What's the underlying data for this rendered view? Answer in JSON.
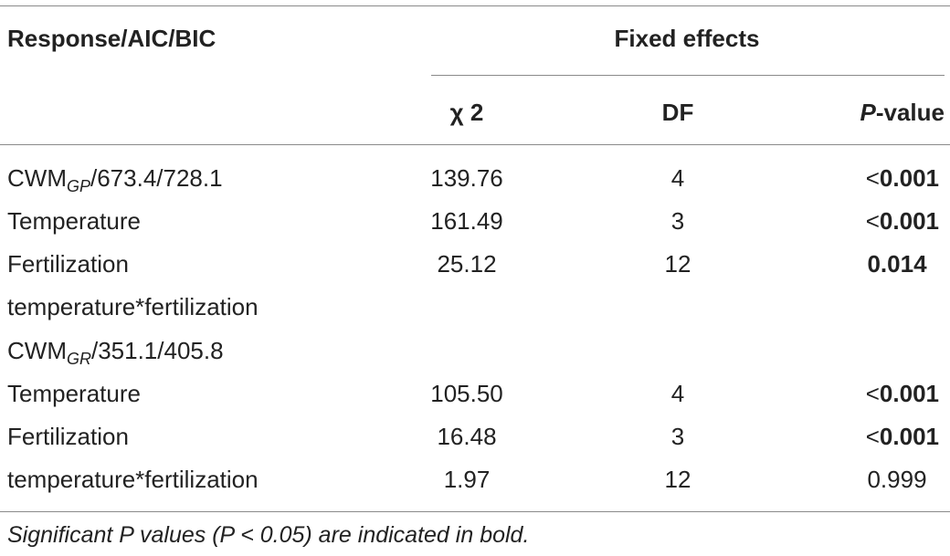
{
  "table": {
    "headers": {
      "response": "Response/AIC/BIC",
      "fixed_effects": "Fixed effects",
      "chi2": "χ 2",
      "df": "DF",
      "p_italic": "P",
      "p_rest": "-value"
    },
    "rows": [
      {
        "label_main": "CWM",
        "label_sub": "GP",
        "label_tail": "/673.4/728.1",
        "chi2": "139.76",
        "df": "4",
        "p_prefix": "<",
        "p": "0.001",
        "p_bold": true
      },
      {
        "label_main": "Temperature",
        "chi2": "161.49",
        "df": "3",
        "p_prefix": "<",
        "p": "0.001",
        "p_bold": true
      },
      {
        "label_main": "Fertilization",
        "chi2": "25.12",
        "df": "12",
        "p_prefix": "",
        "p": "0.014",
        "p_bold": true
      },
      {
        "label_main": "temperature*fertilization",
        "chi2": "",
        "df": "",
        "p_prefix": "",
        "p": "",
        "p_bold": false
      },
      {
        "label_main": "CWM",
        "label_sub": "GR",
        "label_tail": "/351.1/405.8",
        "chi2": "",
        "df": "",
        "p_prefix": "",
        "p": "",
        "p_bold": false
      },
      {
        "label_main": "Temperature",
        "chi2": "105.50",
        "df": "4",
        "p_prefix": "<",
        "p": "0.001",
        "p_bold": true
      },
      {
        "label_main": "Fertilization",
        "chi2": "16.48",
        "df": "3",
        "p_prefix": "<",
        "p": "0.001",
        "p_bold": true
      },
      {
        "label_main": "temperature*fertilization",
        "chi2": "1.97",
        "df": "12",
        "p_prefix": "",
        "p": "0.999",
        "p_bold": false
      }
    ],
    "footnote": "Significant P values (P < 0.05) are indicated in bold."
  }
}
